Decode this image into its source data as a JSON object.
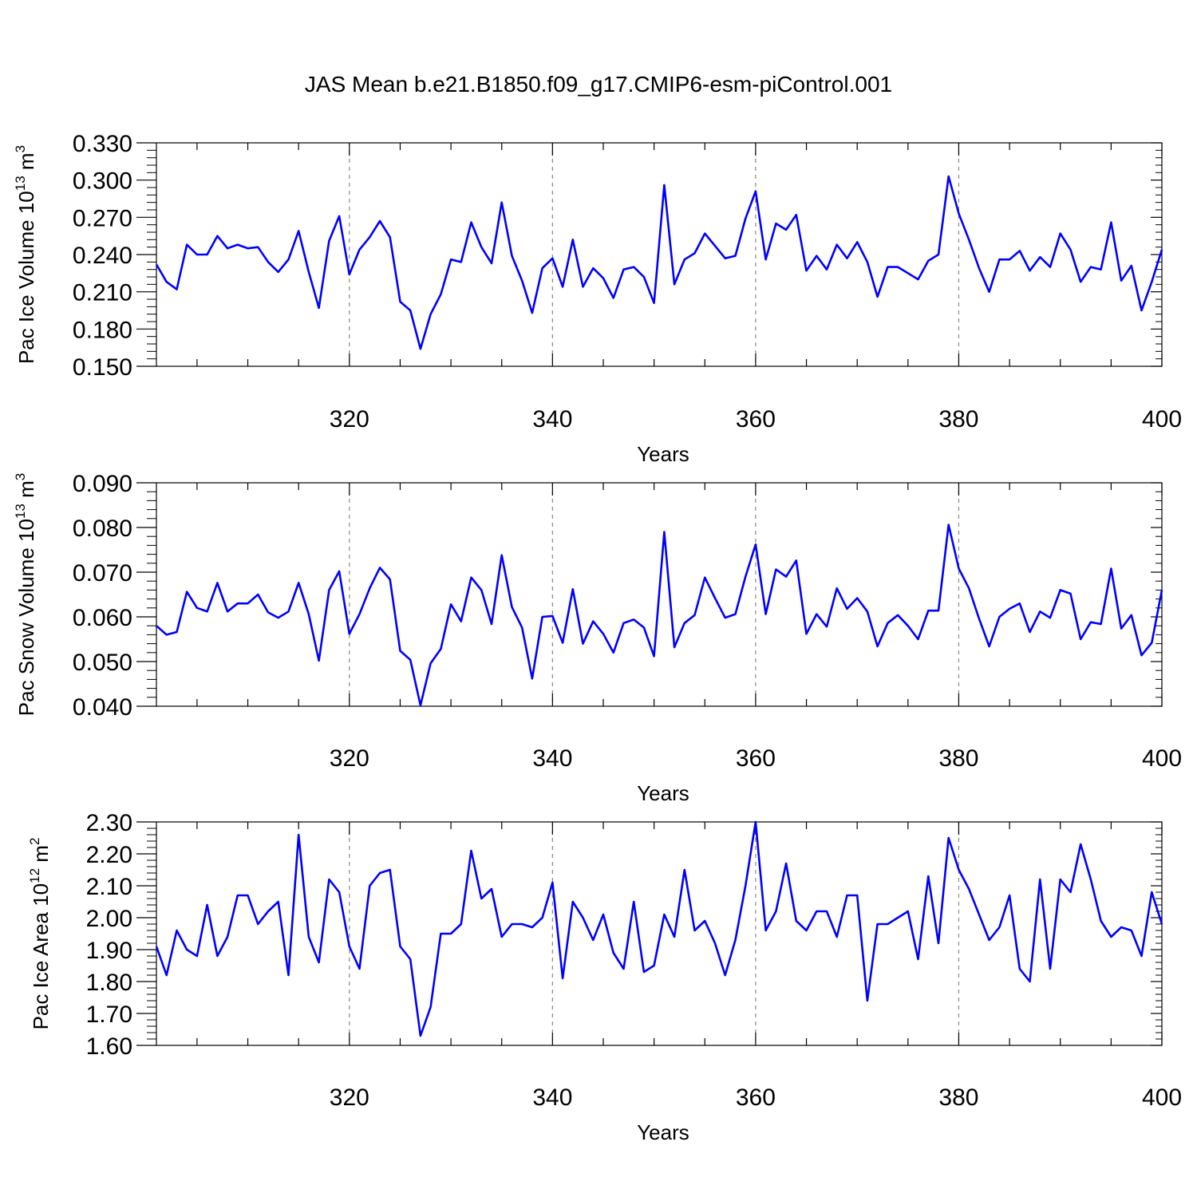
{
  "figure": {
    "title": "JAS Mean b.e21.B1850.f09_g17.CMIP6-esm-piControl.001",
    "line_color": "#0000ff",
    "grid_color": "#888888"
  },
  "chart_data": [
    {
      "type": "line",
      "xlabel": "Years",
      "ylabel": {
        "main": "Pac Ice Volume 10",
        "sup1": "13",
        "mid": " m",
        "sup2": "3"
      },
      "xlim": [
        301,
        400
      ],
      "ylim": [
        0.15,
        0.33
      ],
      "x_ticks": [
        320,
        340,
        360,
        380,
        400
      ],
      "y_ticks": [
        "0.150",
        "0.180",
        "0.210",
        "0.240",
        "0.270",
        "0.300",
        "0.330"
      ],
      "y_tick_values": [
        0.15,
        0.18,
        0.21,
        0.24,
        0.27,
        0.3,
        0.33
      ],
      "x_grid": [
        320,
        340,
        360,
        380
      ],
      "x_start": 301,
      "series": [
        {
          "values": [
            0.232,
            0.218,
            0.212,
            0.248,
            0.24,
            0.24,
            0.255,
            0.245,
            0.248,
            0.245,
            0.246,
            0.234,
            0.226,
            0.236,
            0.259,
            0.226,
            0.197,
            0.251,
            0.271,
            0.224,
            0.244,
            0.254,
            0.267,
            0.254,
            0.202,
            0.195,
            0.164,
            0.192,
            0.208,
            0.236,
            0.234,
            0.266,
            0.246,
            0.233,
            0.282,
            0.239,
            0.219,
            0.193,
            0.229,
            0.237,
            0.214,
            0.252,
            0.214,
            0.229,
            0.221,
            0.205,
            0.228,
            0.23,
            0.222,
            0.201,
            0.296,
            0.216,
            0.236,
            0.241,
            0.257,
            0.247,
            0.237,
            0.239,
            0.269,
            0.291,
            0.236,
            0.265,
            0.26,
            0.272,
            0.227,
            0.239,
            0.228,
            0.248,
            0.237,
            0.25,
            0.234,
            0.206,
            0.23,
            0.23,
            0.225,
            0.22,
            0.235,
            0.24,
            0.303,
            0.273,
            0.252,
            0.229,
            0.21,
            0.236,
            0.236,
            0.243,
            0.227,
            0.238,
            0.23,
            0.257,
            0.244,
            0.218,
            0.23,
            0.228,
            0.266,
            0.219,
            0.231,
            0.195,
            0.218,
            0.244
          ]
        }
      ]
    },
    {
      "type": "line",
      "xlabel": "Years",
      "ylabel": {
        "main": "Pac Snow Volume 10",
        "sup1": "13",
        "mid": " m",
        "sup2": "3"
      },
      "xlim": [
        301,
        400
      ],
      "ylim": [
        0.04,
        0.09
      ],
      "x_ticks": [
        320,
        340,
        360,
        380,
        400
      ],
      "y_ticks": [
        "0.040",
        "0.050",
        "0.060",
        "0.070",
        "0.080",
        "0.090"
      ],
      "y_tick_values": [
        0.04,
        0.05,
        0.06,
        0.07,
        0.08,
        0.09
      ],
      "x_grid": [
        320,
        340,
        360,
        380
      ],
      "x_start": 301,
      "series": [
        {
          "values": [
            0.058,
            0.056,
            0.0566,
            0.0656,
            0.062,
            0.0612,
            0.0676,
            0.0612,
            0.063,
            0.063,
            0.065,
            0.061,
            0.0598,
            0.0612,
            0.0676,
            0.0606,
            0.0502,
            0.066,
            0.0702,
            0.0562,
            0.0606,
            0.0664,
            0.071,
            0.0684,
            0.0524,
            0.0504,
            0.0402,
            0.0496,
            0.0528,
            0.0628,
            0.059,
            0.0688,
            0.066,
            0.0584,
            0.0738,
            0.0622,
            0.0576,
            0.0462,
            0.06,
            0.0602,
            0.0542,
            0.0662,
            0.054,
            0.059,
            0.0562,
            0.052,
            0.0586,
            0.0594,
            0.0576,
            0.0512,
            0.079,
            0.0532,
            0.0586,
            0.0604,
            0.0688,
            0.0642,
            0.0598,
            0.0606,
            0.069,
            0.0762,
            0.0606,
            0.0706,
            0.069,
            0.0726,
            0.0562,
            0.0606,
            0.0578,
            0.0664,
            0.0618,
            0.0642,
            0.0612,
            0.0534,
            0.0586,
            0.0604,
            0.058,
            0.055,
            0.0614,
            0.0614,
            0.0806,
            0.0708,
            0.0664,
            0.0596,
            0.0534,
            0.06,
            0.0618,
            0.063,
            0.0566,
            0.0612,
            0.0598,
            0.066,
            0.0652,
            0.055,
            0.0588,
            0.0584,
            0.0708,
            0.0574,
            0.0604,
            0.0514,
            0.0542,
            0.066
          ]
        }
      ]
    },
    {
      "type": "line",
      "xlabel": "Years",
      "ylabel": {
        "main": "Pac Ice Area 10",
        "sup1": "12",
        "mid": " m",
        "sup2": "2"
      },
      "xlim": [
        301,
        400
      ],
      "ylim": [
        1.6,
        2.3
      ],
      "x_ticks": [
        320,
        340,
        360,
        380,
        400
      ],
      "y_ticks": [
        "1.60",
        "1.70",
        "1.80",
        "1.90",
        "2.00",
        "2.10",
        "2.20",
        "2.30"
      ],
      "y_tick_values": [
        1.6,
        1.7,
        1.8,
        1.9,
        2.0,
        2.1,
        2.2,
        2.3
      ],
      "x_grid": [
        320,
        340,
        360,
        380
      ],
      "x_start": 301,
      "series": [
        {
          "values": [
            1.91,
            1.82,
            1.96,
            1.9,
            1.88,
            2.04,
            1.88,
            1.94,
            2.07,
            2.07,
            1.98,
            2.02,
            2.05,
            1.82,
            2.26,
            1.94,
            1.86,
            2.12,
            2.08,
            1.91,
            1.84,
            2.1,
            2.14,
            2.15,
            1.91,
            1.87,
            1.63,
            1.72,
            1.95,
            1.95,
            1.98,
            2.21,
            2.06,
            2.09,
            1.94,
            1.98,
            1.98,
            1.97,
            2.0,
            2.11,
            1.81,
            2.05,
            2.0,
            1.93,
            2.01,
            1.89,
            1.84,
            2.05,
            1.83,
            1.85,
            2.01,
            1.94,
            2.15,
            1.96,
            1.99,
            1.92,
            1.82,
            1.93,
            2.1,
            2.3,
            1.96,
            2.02,
            2.17,
            1.99,
            1.96,
            2.02,
            2.02,
            1.94,
            2.07,
            2.07,
            1.74,
            1.98,
            1.98,
            2.0,
            2.02,
            1.87,
            2.13,
            1.92,
            2.25,
            2.15,
            2.09,
            2.01,
            1.93,
            1.97,
            2.07,
            1.84,
            1.8,
            2.12,
            1.84,
            2.12,
            2.08,
            2.23,
            2.12,
            1.99,
            1.94,
            1.97,
            1.96,
            1.88,
            2.08,
            1.98
          ]
        }
      ]
    }
  ]
}
